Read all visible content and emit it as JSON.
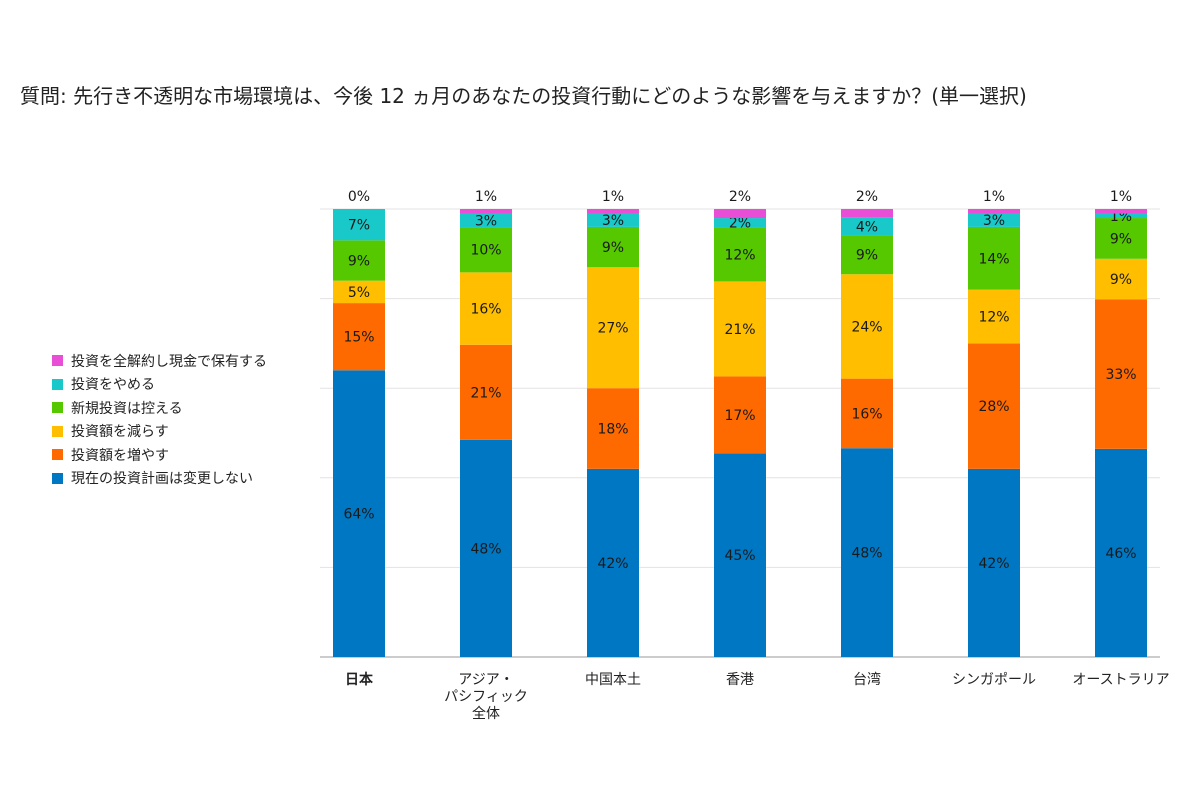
{
  "question": "質問: 先行き不透明な市場環境は、今後 12 ヵ月のあなたの投資行動にどのような影響を与えますか？(単一選択)",
  "chart_data": {
    "type": "bar",
    "stacked": true,
    "percent_of_total": true,
    "legend_position": "left",
    "grid": true,
    "categories": [
      "日本",
      "アジア・\nパシフィック\n全体",
      "中国本土",
      "香港",
      "台湾",
      "シンガポール",
      "オーストラリア"
    ],
    "series": [
      {
        "name": "現在の投資計画は変更しない",
        "color": "#0077c2",
        "values": [
          64,
          48,
          42,
          45,
          48,
          42,
          46
        ]
      },
      {
        "name": "投資額を増やす",
        "color": "#ff6a00",
        "values": [
          15,
          21,
          18,
          17,
          16,
          28,
          33
        ]
      },
      {
        "name": "投資額を減らす",
        "color": "#ffbf00",
        "values": [
          5,
          16,
          27,
          21,
          24,
          12,
          9
        ]
      },
      {
        "name": "新規投資は控える",
        "color": "#55c800",
        "values": [
          9,
          10,
          9,
          12,
          9,
          14,
          9
        ]
      },
      {
        "name": "投資をやめる",
        "color": "#19c8c8",
        "values": [
          7,
          3,
          3,
          2,
          4,
          3,
          1
        ]
      },
      {
        "name": "投資を全解約し現金で保有する",
        "color": "#e84fd6",
        "values": [
          0,
          1,
          1,
          2,
          2,
          1,
          1
        ]
      }
    ]
  }
}
